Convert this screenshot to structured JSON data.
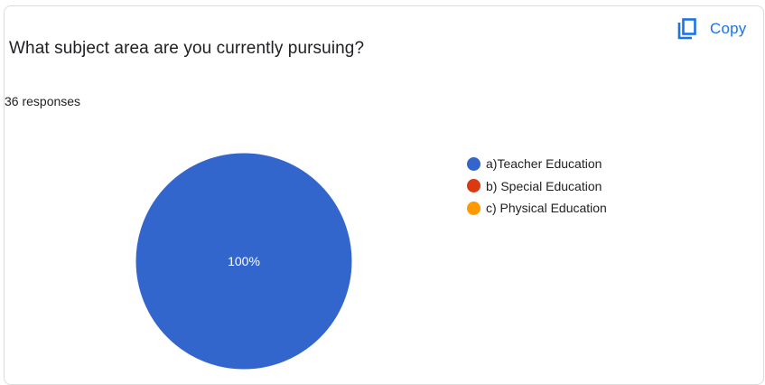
{
  "question": {
    "title": "What subject area are you currently pursuing?",
    "responses": "36 responses"
  },
  "toolbar": {
    "copy_label": "Copy",
    "copy_icon": "copy-icon"
  },
  "colors": {
    "accent": "#1a73e8",
    "series": [
      "#3366cc",
      "#dc3912",
      "#ff9900"
    ]
  },
  "chart_data": {
    "type": "pie",
    "categories": [
      "a)Teacher Education",
      "b) Special Education",
      "c) Physical Education"
    ],
    "values": [
      100,
      0,
      0
    ],
    "data_labels": [
      "100%"
    ],
    "legend": "right"
  }
}
